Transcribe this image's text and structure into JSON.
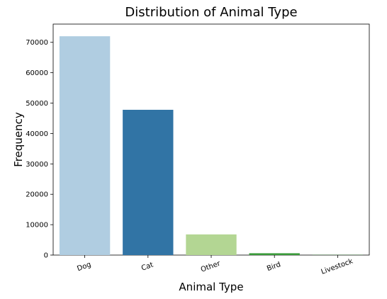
{
  "chart_data": {
    "type": "bar",
    "title": "Distribution of Animal Type",
    "xlabel": "Animal Type",
    "ylabel": "Frequency",
    "categories": [
      "Dog",
      "Cat",
      "Other",
      "Bird",
      "Livestock"
    ],
    "values": [
      72000,
      47800,
      6800,
      600,
      60
    ],
    "colors": [
      "#b0cde1",
      "#3174a5",
      "#b3d693",
      "#3a9a3a",
      "#2a8a2a"
    ],
    "ylim": [
      0,
      76000
    ],
    "yticks": [
      0,
      10000,
      20000,
      30000,
      40000,
      50000,
      60000,
      70000
    ],
    "ytick_labels": [
      "0",
      "10000",
      "20000",
      "30000",
      "40000",
      "50000",
      "60000",
      "70000"
    ],
    "xtick_rotation": -20,
    "grid": false,
    "legend": "none"
  }
}
